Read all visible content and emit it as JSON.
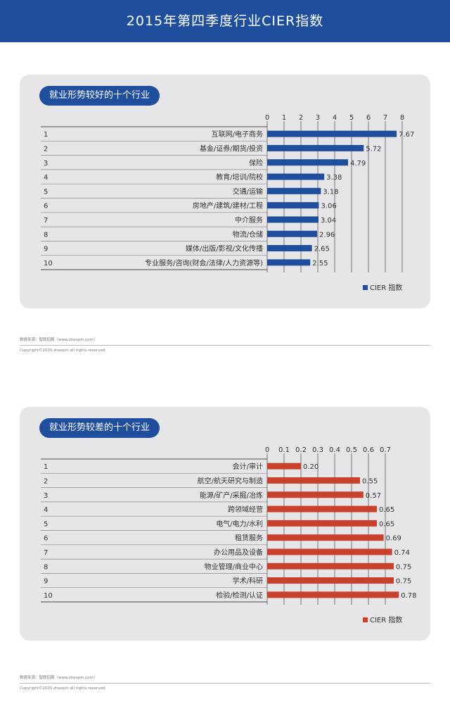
{
  "page": {
    "title": "2015年第四季度行业CIER指数"
  },
  "chart_data": [
    {
      "type": "bar",
      "title": "就业形势较好的十个行业",
      "orientation": "horizontal",
      "ranks": [
        "1",
        "2",
        "3",
        "4",
        "5",
        "6",
        "7",
        "8",
        "9",
        "10"
      ],
      "categories": [
        "互联网/电子商务",
        "基金/证券/期货/投资",
        "保险",
        "教育/培训/院校",
        "交通/运输",
        "房地产/建筑/建材/工程",
        "中介服务",
        "物流/仓储",
        "媒体/出版/影视/文化传播",
        "专业服务/咨询(财会/法律/人力资源等)"
      ],
      "value_labels": [
        "7.67",
        "5.72",
        "4.79",
        "3.38",
        "3.18",
        "3.06",
        "3.04",
        "2.96",
        "2.65",
        "2.55"
      ],
      "series": [
        {
          "name": "CIER 指数",
          "values": [
            7.67,
            5.72,
            4.79,
            3.38,
            3.18,
            3.06,
            3.04,
            2.96,
            2.65,
            2.55
          ],
          "color": "#1f4e9c"
        }
      ],
      "xlim": [
        0,
        8
      ],
      "xticks": [
        "0",
        "1",
        "2",
        "3",
        "4",
        "5",
        "6",
        "7",
        "8"
      ],
      "xtick_values": [
        0,
        1,
        2,
        3,
        4,
        5,
        6,
        7,
        8
      ],
      "grid": true,
      "legend": "bottom-right"
    },
    {
      "type": "bar",
      "title": "就业形势较差的十个行业",
      "orientation": "horizontal",
      "ranks": [
        "1",
        "2",
        "3",
        "4",
        "5",
        "6",
        "7",
        "8",
        "9",
        "10"
      ],
      "categories": [
        "会计/审计",
        "航空/航天研究与制造",
        "能源/矿产/采掘/冶炼",
        "跨领域经营",
        "电气/电力/水利",
        "租赁服务",
        "办公用品及设备",
        "物业管理/商业中心",
        "学术/科研",
        "检验/检测/认证"
      ],
      "value_labels": [
        "0.20",
        "0.55",
        "0.57",
        "0.65",
        "0.65",
        "0.69",
        "0.74",
        "0.75",
        "0.75",
        "0.78"
      ],
      "series": [
        {
          "name": "CIER 指数",
          "values": [
            0.2,
            0.55,
            0.57,
            0.65,
            0.65,
            0.69,
            0.74,
            0.75,
            0.75,
            0.78
          ],
          "color": "#c8412c"
        }
      ],
      "xlim": [
        0,
        0.8
      ],
      "xticks": [
        "0",
        "0.1",
        "0.2",
        "0.3",
        "0.4",
        "0.5",
        "0.6",
        "0.7"
      ],
      "xtick_values": [
        0,
        0.1,
        0.2,
        0.3,
        0.4,
        0.5,
        0.6,
        0.7
      ],
      "grid": true,
      "legend": "bottom-right"
    }
  ],
  "footer": {
    "source": "数据来源：智联招聘（www.zhaopin.com）",
    "copyright": "Copyright©2015 zhaopin all rights reserved"
  }
}
